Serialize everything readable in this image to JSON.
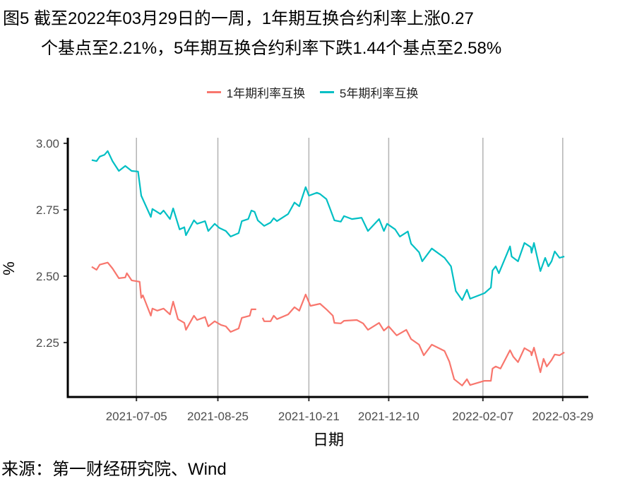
{
  "title_line1": "图5  截至2022年03月29日的一周，1年期互换合约利率上涨0.27",
  "title_line2": "个基点至2.21%，5年期互换合约利率下跌1.44个基点至2.58%",
  "source": "来源：第一财经研究院、Wind",
  "chart_data": {
    "type": "line",
    "title": "截至2022年03月29日的一周，1年期互换合约利率上涨0.27个基点至2.21%，5年期互换合约利率下跌1.44个基点至2.58%",
    "xlabel": "日期",
    "ylabel": "%",
    "x_unit": "days since 2021-07-05",
    "xlim": [
      -43,
      283
    ],
    "ylim": [
      2.045,
      3.021
    ],
    "grid": "vertical major",
    "legend_position": "top",
    "x_ticks": [
      {
        "label": "2021-07-05",
        "x": 0
      },
      {
        "label": "2021-08-25",
        "x": 51
      },
      {
        "label": "2021-10-21",
        "x": 108
      },
      {
        "label": "2021-12-10",
        "x": 158
      },
      {
        "label": "2022-02-07",
        "x": 217
      },
      {
        "label": "2022-03-29",
        "x": 267
      }
    ],
    "y_ticks": [
      {
        "label": "3.00",
        "y": 3.0
      },
      {
        "label": "2.75",
        "y": 2.75
      },
      {
        "label": "2.50",
        "y": 2.5
      },
      {
        "label": "2.25",
        "y": 2.25
      }
    ],
    "series": [
      {
        "name": "1年期利率互换",
        "color": "#F8766D",
        "segments": [
          [
            [
              -28,
              2.535
            ],
            [
              -25,
              2.524
            ],
            [
              -23,
              2.543
            ],
            [
              -18,
              2.551
            ],
            [
              -15,
              2.529
            ],
            [
              -11,
              2.492
            ],
            [
              -7,
              2.495
            ],
            [
              -6,
              2.511
            ],
            [
              -3,
              2.484
            ],
            [
              2,
              2.479
            ],
            [
              3,
              2.418
            ],
            [
              4,
              2.428
            ],
            [
              9,
              2.351
            ],
            [
              10,
              2.378
            ],
            [
              13,
              2.37
            ],
            [
              17,
              2.378
            ],
            [
              21,
              2.356
            ],
            [
              23,
              2.404
            ],
            [
              26,
              2.338
            ],
            [
              30,
              2.324
            ],
            [
              31,
              2.298
            ],
            [
              36,
              2.351
            ],
            [
              38,
              2.335
            ],
            [
              43,
              2.346
            ],
            [
              45,
              2.311
            ],
            [
              49,
              2.33
            ],
            [
              53,
              2.316
            ],
            [
              56,
              2.311
            ],
            [
              59,
              2.29
            ],
            [
              64,
              2.303
            ],
            [
              66,
              2.343
            ],
            [
              71,
              2.351
            ],
            [
              72,
              2.375
            ],
            [
              75,
              2.375
            ]
          ],
          [
            [
              79,
              2.343
            ],
            [
              80,
              2.33
            ],
            [
              84,
              2.33
            ],
            [
              86,
              2.351
            ],
            [
              88,
              2.338
            ],
            [
              95,
              2.356
            ],
            [
              99,
              2.383
            ],
            [
              102,
              2.37
            ],
            [
              106,
              2.431
            ],
            [
              109,
              2.388
            ],
            [
              115,
              2.396
            ],
            [
              119,
              2.375
            ],
            [
              123,
              2.351
            ],
            [
              124,
              2.324
            ],
            [
              128,
              2.322
            ],
            [
              130,
              2.332
            ],
            [
              138,
              2.335
            ],
            [
              142,
              2.322
            ],
            [
              145,
              2.298
            ],
            [
              152,
              2.324
            ],
            [
              155,
              2.295
            ],
            [
              158,
              2.311
            ],
            [
              163,
              2.277
            ],
            [
              169,
              2.298
            ],
            [
              172,
              2.263
            ],
            [
              177,
              2.242
            ],
            [
              180,
              2.202
            ],
            [
              185,
              2.242
            ],
            [
              193,
              2.218
            ],
            [
              196,
              2.178
            ],
            [
              199,
              2.112
            ],
            [
              204,
              2.088
            ],
            [
              207,
              2.112
            ],
            [
              209,
              2.09
            ],
            [
              218,
              2.106
            ],
            [
              222,
              2.106
            ],
            [
              223,
              2.152
            ],
            [
              225,
              2.16
            ],
            [
              228,
              2.152
            ],
            [
              234,
              2.221
            ],
            [
              236,
              2.197
            ],
            [
              239,
              2.176
            ],
            [
              243,
              2.229
            ],
            [
              247,
              2.215
            ],
            [
              247.5,
              2.202
            ],
            [
              249,
              2.231
            ],
            [
              253,
              2.138
            ],
            [
              255,
              2.189
            ],
            [
              257,
              2.16
            ],
            [
              260,
              2.184
            ],
            [
              262,
              2.205
            ],
            [
              265,
              2.202
            ],
            [
              268,
              2.213
            ]
          ]
        ]
      },
      {
        "name": "5年期利率互换",
        "color": "#00BFC4",
        "segments": [
          [
            [
              -28,
              2.937
            ],
            [
              -25,
              2.933
            ],
            [
              -23,
              2.95
            ],
            [
              -20,
              2.957
            ],
            [
              -18,
              2.971
            ],
            [
              -15,
              2.933
            ],
            [
              -11,
              2.896
            ],
            [
              -7,
              2.915
            ],
            [
              -3,
              2.896
            ],
            [
              1,
              2.894
            ],
            [
              3,
              2.803
            ],
            [
              9,
              2.723
            ],
            [
              10,
              2.753
            ],
            [
              15,
              2.734
            ],
            [
              17,
              2.747
            ],
            [
              21,
              2.715
            ],
            [
              23,
              2.755
            ],
            [
              27,
              2.676
            ],
            [
              30,
              2.684
            ],
            [
              31,
              2.654
            ],
            [
              36,
              2.71
            ],
            [
              38,
              2.697
            ],
            [
              43,
              2.707
            ],
            [
              45,
              2.67
            ],
            [
              49,
              2.697
            ],
            [
              52,
              2.681
            ],
            [
              56,
              2.67
            ],
            [
              59,
              2.649
            ],
            [
              64,
              2.662
            ],
            [
              66,
              2.707
            ],
            [
              70,
              2.715
            ],
            [
              72,
              2.747
            ],
            [
              74,
              2.742
            ],
            [
              76,
              2.71
            ],
            [
              80,
              2.689
            ],
            [
              84,
              2.702
            ],
            [
              86,
              2.718
            ],
            [
              88,
              2.707
            ],
            [
              95,
              2.734
            ],
            [
              99,
              2.777
            ],
            [
              102,
              2.763
            ],
            [
              106,
              2.835
            ],
            [
              108,
              2.803
            ],
            [
              113,
              2.814
            ],
            [
              115,
              2.809
            ],
            [
              119,
              2.79
            ],
            [
              121,
              2.758
            ],
            [
              124,
              2.71
            ],
            [
              128,
              2.705
            ],
            [
              130,
              2.726
            ],
            [
              135,
              2.715
            ],
            [
              141,
              2.72
            ],
            [
              145,
              2.67
            ],
            [
              152,
              2.715
            ],
            [
              155,
              2.67
            ],
            [
              157,
              2.697
            ],
            [
              162,
              2.676
            ],
            [
              165,
              2.649
            ],
            [
              170,
              2.668
            ],
            [
              172,
              2.622
            ],
            [
              177,
              2.59
            ],
            [
              179,
              2.556
            ],
            [
              185,
              2.604
            ],
            [
              193,
              2.569
            ],
            [
              197,
              2.537
            ],
            [
              200,
              2.444
            ],
            [
              204,
              2.41
            ],
            [
              207,
              2.449
            ],
            [
              209,
              2.415
            ],
            [
              218,
              2.436
            ],
            [
              222,
              2.457
            ],
            [
              223,
              2.521
            ],
            [
              225,
              2.537
            ],
            [
              227,
              2.511
            ],
            [
              234,
              2.612
            ],
            [
              235,
              2.574
            ],
            [
              239,
              2.556
            ],
            [
              243,
              2.625
            ],
            [
              247,
              2.609
            ],
            [
              247.5,
              2.588
            ],
            [
              249,
              2.625
            ],
            [
              253,
              2.519
            ],
            [
              256,
              2.569
            ],
            [
              258,
              2.537
            ],
            [
              260,
              2.556
            ],
            [
              262,
              2.593
            ],
            [
              265,
              2.569
            ],
            [
              268,
              2.574
            ]
          ]
        ]
      }
    ]
  }
}
